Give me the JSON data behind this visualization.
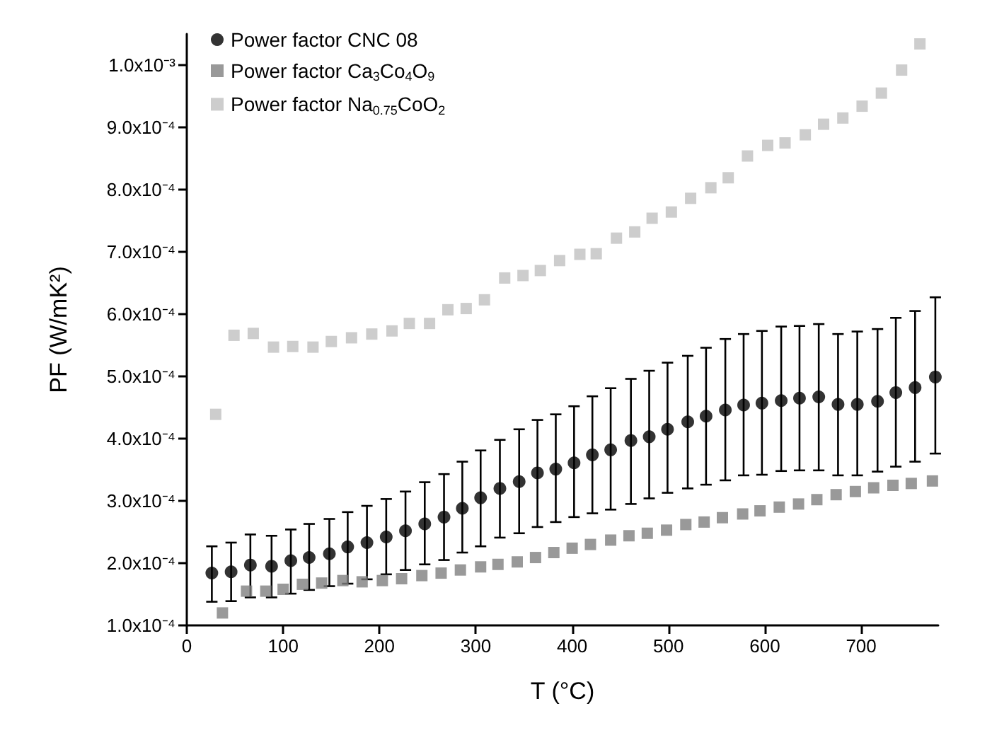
{
  "chart_data": {
    "type": "scatter",
    "xlabel": "T (°C)",
    "ylabel": "PF (W/mK²)",
    "xlim": [
      0,
      780
    ],
    "xticks": [
      0,
      100,
      200,
      300,
      400,
      500,
      600,
      700
    ],
    "ylim": [
      0.0001,
      0.00105
    ],
    "yticks": [
      {
        "value": 0.0001,
        "label": "1.0x10⁻⁴"
      },
      {
        "value": 0.0002,
        "label": "2.0x10⁻⁴"
      },
      {
        "value": 0.0003,
        "label": "3.0x10⁻⁴"
      },
      {
        "value": 0.0004,
        "label": "4.0x10⁻⁴"
      },
      {
        "value": 0.0005,
        "label": "5.0x10⁻⁴"
      },
      {
        "value": 0.0006,
        "label": "6.0x10⁻⁴"
      },
      {
        "value": 0.0007,
        "label": "7.0x10⁻⁴"
      },
      {
        "value": 0.0008,
        "label": "8.0x10⁻⁴"
      },
      {
        "value": 0.0009,
        "label": "9.0x10⁻⁴"
      },
      {
        "value": 0.001,
        "label": "1.0x10⁻³"
      }
    ],
    "grid": false,
    "legend": "top left",
    "series": [
      {
        "name": "Power factor CNC 08",
        "color": "#000000",
        "marker": "circle",
        "x": [
          26,
          46,
          66,
          88,
          108,
          127,
          148,
          167,
          187,
          207,
          227,
          247,
          267,
          286,
          305,
          325,
          345,
          364,
          383,
          402,
          421,
          440,
          461,
          480,
          499,
          520,
          539,
          559,
          578,
          597,
          617,
          636,
          656,
          676,
          696,
          717,
          736,
          756,
          777
        ],
        "values": [
          0.000184,
          0.000186,
          0.000197,
          0.000195,
          0.000204,
          0.000209,
          0.000215,
          0.000226,
          0.000233,
          0.000242,
          0.000252,
          0.000263,
          0.000274,
          0.000288,
          0.000305,
          0.00032,
          0.000331,
          0.000345,
          0.000351,
          0.000361,
          0.000374,
          0.000382,
          0.000397,
          0.000403,
          0.000415,
          0.000427,
          0.000436,
          0.000446,
          0.000454,
          0.000457,
          0.000461,
          0.000465,
          0.000467,
          0.000455,
          0.000455,
          0.00046,
          0.000474,
          0.000482,
          0.000499
        ],
        "errors": [
          [
            0.000138,
            0.000227
          ],
          [
            0.000139,
            0.000233
          ],
          [
            0.000145,
            0.000246
          ],
          [
            0.000145,
            0.000244
          ],
          [
            0.000151,
            0.000254
          ],
          [
            0.000157,
            0.000263
          ],
          [
            0.000163,
            0.000271
          ],
          [
            0.000167,
            0.000282
          ],
          [
            0.000174,
            0.000292
          ],
          [
            0.000182,
            0.000303
          ],
          [
            0.000189,
            0.000315
          ],
          [
            0.000198,
            0.00033
          ],
          [
            0.000205,
            0.000343
          ],
          [
            0.000217,
            0.000363
          ],
          [
            0.000227,
            0.000381
          ],
          [
            0.000241,
            0.000398
          ],
          [
            0.000248,
            0.000415
          ],
          [
            0.000258,
            0.00043
          ],
          [
            0.000266,
            0.000439
          ],
          [
            0.000274,
            0.000452
          ],
          [
            0.00028,
            0.000468
          ],
          [
            0.000286,
            0.000481
          ],
          [
            0.000295,
            0.000496
          ],
          [
            0.000304,
            0.000509
          ],
          [
            0.000313,
            0.000522
          ],
          [
            0.00032,
            0.000533
          ],
          [
            0.000326,
            0.000546
          ],
          [
            0.000333,
            0.00056
          ],
          [
            0.000341,
            0.000568
          ],
          [
            0.000342,
            0.000573
          ],
          [
            0.000348,
            0.00058
          ],
          [
            0.000349,
            0.000581
          ],
          [
            0.000349,
            0.000584
          ],
          [
            0.000341,
            0.000568
          ],
          [
            0.000341,
            0.000572
          ],
          [
            0.000347,
            0.000576
          ],
          [
            0.000355,
            0.000594
          ],
          [
            0.000363,
            0.000605
          ],
          [
            0.000376,
            0.000627
          ]
        ]
      },
      {
        "name": "Power factor Ca$_{3}$Co$_{4}$O$_{9}$",
        "color": "#808080",
        "marker": "square",
        "x": [
          37,
          62,
          82,
          100,
          120,
          140,
          162,
          182,
          203,
          223,
          244,
          264,
          284,
          305,
          323,
          343,
          362,
          381,
          400,
          419,
          440,
          459,
          478,
          498,
          518,
          537,
          556,
          577,
          595,
          615,
          635,
          654,
          674,
          694,
          713,
          733,
          752,
          774
        ],
        "values": [
          0.00012,
          0.000155,
          0.000155,
          0.000158,
          0.000166,
          0.000168,
          0.000172,
          0.00017,
          0.000172,
          0.000175,
          0.00018,
          0.000184,
          0.000189,
          0.000194,
          0.000198,
          0.000202,
          0.000209,
          0.000217,
          0.000224,
          0.00023,
          0.000237,
          0.000244,
          0.000248,
          0.000253,
          0.000262,
          0.000266,
          0.000273,
          0.000279,
          0.000284,
          0.00029,
          0.000295,
          0.000302,
          0.00031,
          0.000315,
          0.000321,
          0.000325,
          0.000328,
          0.000332
        ]
      },
      {
        "name": "Power factor Na$_{0.75}$CoO$_{2}$",
        "color": "#c0c0c0",
        "marker": "square",
        "x": [
          30,
          49,
          69,
          90,
          110,
          131,
          150,
          171,
          192,
          213,
          231,
          252,
          271,
          290,
          309,
          330,
          349,
          367,
          387,
          408,
          425,
          446,
          465,
          483,
          503,
          523,
          544,
          562,
          582,
          603,
          621,
          642,
          661,
          681,
          701,
          721,
          742,
          761
        ],
        "values": [
          0.000439,
          0.000566,
          0.000569,
          0.000547,
          0.000548,
          0.000547,
          0.000556,
          0.000562,
          0.000568,
          0.000573,
          0.000585,
          0.000585,
          0.000607,
          0.000609,
          0.000623,
          0.000658,
          0.000662,
          0.00067,
          0.000686,
          0.000696,
          0.000697,
          0.000722,
          0.000732,
          0.000754,
          0.000764,
          0.000786,
          0.000803,
          0.000819,
          0.000854,
          0.000871,
          0.000875,
          0.000888,
          0.000905,
          0.000915,
          0.000934,
          0.000955,
          0.000992,
          0.001034
        ]
      }
    ]
  }
}
